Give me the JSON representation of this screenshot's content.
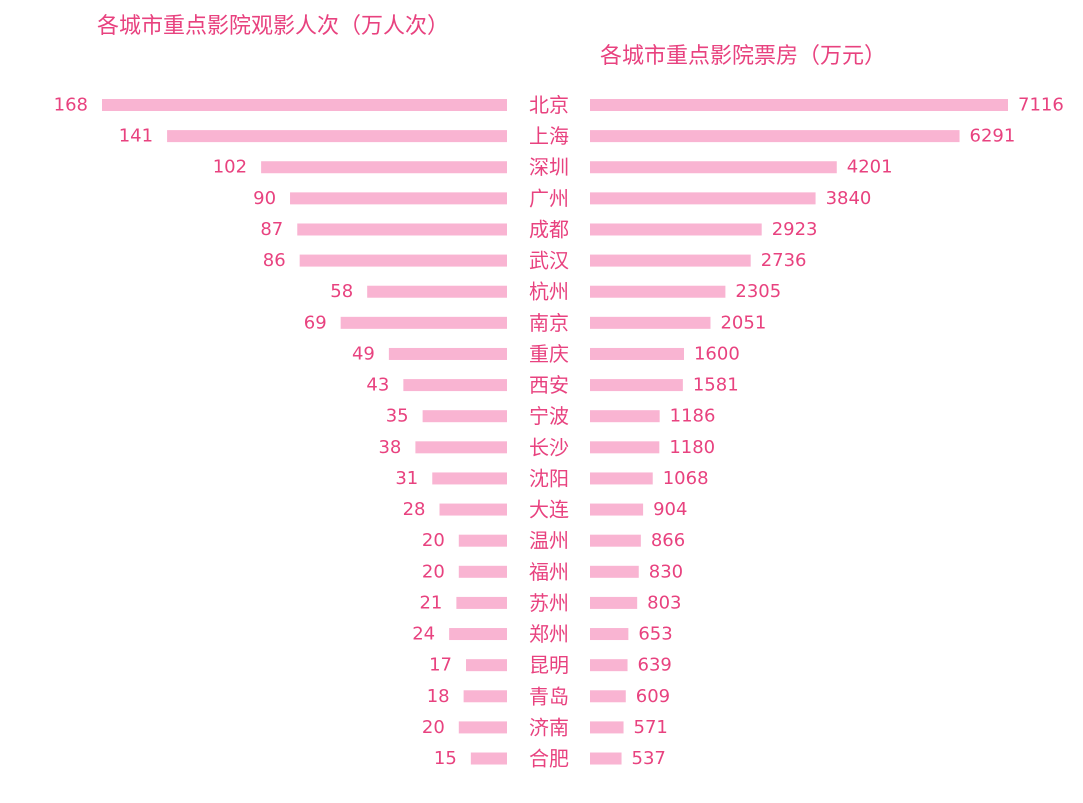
{
  "colors": {
    "bar": "#f9b4d2",
    "text": "#e8427f"
  },
  "titles": {
    "left": "各城市重点影院观影人次（万人次）",
    "right": "各城市重点影院票房（万元）"
  },
  "chart_data": {
    "type": "bar",
    "layout": "butterfly",
    "categories": [
      "北京",
      "上海",
      "深圳",
      "广州",
      "成都",
      "武汉",
      "杭州",
      "南京",
      "重庆",
      "西安",
      "宁波",
      "长沙",
      "沈阳",
      "大连",
      "温州",
      "福州",
      "苏州",
      "郑州",
      "昆明",
      "青岛",
      "济南",
      "合肥"
    ],
    "series": [
      {
        "name": "各城市重点影院观影人次（万人次）",
        "side": "left",
        "values": [
          168,
          141,
          102,
          90,
          87,
          86,
          58,
          69,
          49,
          43,
          35,
          38,
          31,
          28,
          20,
          20,
          21,
          24,
          17,
          18,
          20,
          15
        ]
      },
      {
        "name": "各城市重点影院票房（万元）",
        "side": "right",
        "values": [
          7116,
          6291,
          4201,
          3840,
          2923,
          2736,
          2305,
          2051,
          1600,
          1581,
          1186,
          1180,
          1068,
          904,
          866,
          830,
          803,
          653,
          639,
          609,
          571,
          537
        ]
      }
    ],
    "grid": false,
    "legend": "none"
  }
}
